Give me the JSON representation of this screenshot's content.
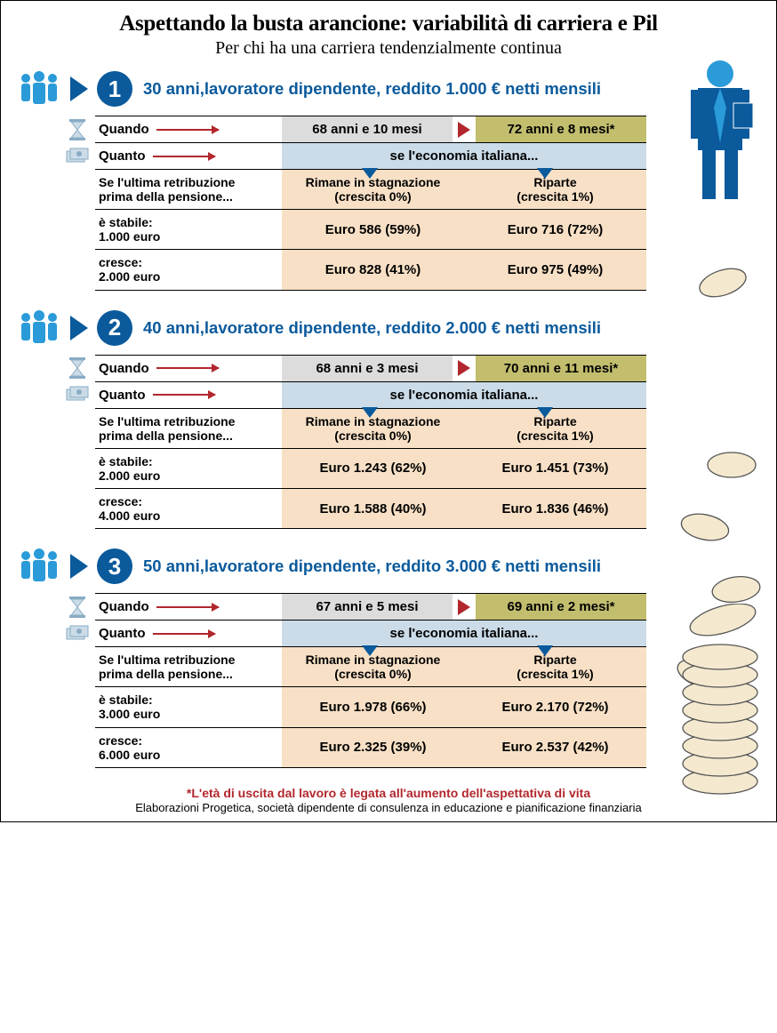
{
  "title": "Aspettando la busta arancione: variabilità di carriera e Pil",
  "subtitle": "Per chi ha una carriera tendenzialmente continua",
  "labels": {
    "quando": "Quando",
    "quanto": "Quanto",
    "economy": "se l'economia italiana...",
    "retrib_line1": "Se l'ultima retribuzione",
    "retrib_line2": "prima della pensione...",
    "stagnation_line1": "Rimane in stagnazione",
    "stagnation_line2": "(crescita 0%)",
    "recover_line1": "Riparte",
    "recover_line2": "(crescita 1%)",
    "stable_word": "è stabile:",
    "grow_word": "cresce:"
  },
  "scenarios": [
    {
      "num": "1",
      "heading": "30 anni,lavoratore dipendente, reddito 1.000 € netti mensili",
      "age_low": "68 anni e 10 mesi",
      "age_high": "72 anni e 8 mesi*",
      "stable_amt": "1.000 euro",
      "grow_amt": "2.000 euro",
      "row_stable_lo": "Euro 586 (59%)",
      "row_stable_hi": "Euro 716 (72%)",
      "row_grow_lo": "Euro 828 (41%)",
      "row_grow_hi": "Euro 975 (49%)"
    },
    {
      "num": "2",
      "heading": "40 anni,lavoratore dipendente, reddito 2.000 € netti mensili",
      "age_low": "68 anni e 3 mesi",
      "age_high": "70 anni e 11 mesi*",
      "stable_amt": "2.000 euro",
      "grow_amt": "4.000 euro",
      "row_stable_lo": "Euro 1.243 (62%)",
      "row_stable_hi": "Euro 1.451 (73%)",
      "row_grow_lo": "Euro 1.588 (40%)",
      "row_grow_hi": "Euro 1.836 (46%)"
    },
    {
      "num": "3",
      "heading": "50 anni,lavoratore dipendente, reddito 3.000 € netti mensili",
      "age_low": "67 anni e 5 mesi",
      "age_high": "69 anni e 2 mesi*",
      "stable_amt": "3.000 euro",
      "grow_amt": "6.000 euro",
      "row_stable_lo": "Euro 1.978 (66%)",
      "row_stable_hi": "Euro 2.170 (72%)",
      "row_grow_lo": "Euro 2.325 (39%)",
      "row_grow_hi": "Euro 2.537 (42%)"
    }
  ],
  "footnote1": "*L'età di uscita dal lavoro è legata all'aumento dell'aspettativa di vita",
  "footnote2": "Elaborazioni Progetica, società dipendente di consulenza in educazione e pianificazione finanziaria",
  "colors": {
    "brand_blue": "#0a5a9c",
    "icon_blue": "#2a9bd8",
    "red": "#b1272d",
    "grey": "#dcdcdc",
    "olive": "#c2be6e",
    "lblue": "#cbdce8",
    "peach": "#f7e0c6",
    "coin_fill": "#f4e9cf",
    "coin_stroke": "#555"
  }
}
